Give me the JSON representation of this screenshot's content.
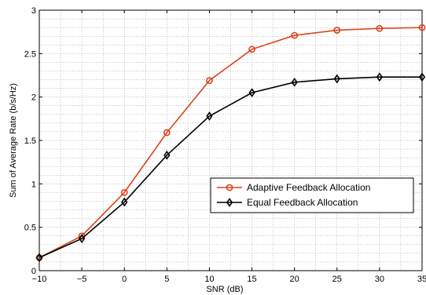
{
  "chart_data": {
    "type": "line",
    "xlabel": "SNR (dB)",
    "ylabel": "Sum of Average Rate (b/s/Hz)",
    "xlim": [
      -10,
      35
    ],
    "ylim": [
      0,
      3
    ],
    "xticks": [
      -10,
      -5,
      0,
      5,
      10,
      15,
      20,
      25,
      30,
      35
    ],
    "yticks": [
      0,
      0.5,
      1,
      1.5,
      2,
      2.5,
      3
    ],
    "xtick_labels": [
      "−10",
      "−5",
      "0",
      "5",
      "10",
      "15",
      "20",
      "25",
      "30",
      "35"
    ],
    "ytick_labels": [
      "0",
      "0.5",
      "1",
      "1.5",
      "2",
      "2.5",
      "3"
    ],
    "x_minor_step": 2.5,
    "y_minor_step": 0.1,
    "grid": true,
    "legend_position": "center-right",
    "series": [
      {
        "name": "Adaptive Feedback Allocation",
        "color": "#d9451c",
        "marker": "circle",
        "x": [
          -10,
          -5,
          0,
          5,
          10,
          15,
          20,
          25,
          30,
          35
        ],
        "y": [
          0.15,
          0.4,
          0.9,
          1.59,
          2.19,
          2.55,
          2.71,
          2.77,
          2.79,
          2.8
        ]
      },
      {
        "name": "Equal Feedback Allocation",
        "color": "#000000",
        "marker": "diamond",
        "x": [
          -10,
          -5,
          0,
          5,
          10,
          15,
          20,
          25,
          30,
          35
        ],
        "y": [
          0.15,
          0.37,
          0.79,
          1.33,
          1.78,
          2.05,
          2.17,
          2.21,
          2.23,
          2.23
        ]
      }
    ]
  }
}
